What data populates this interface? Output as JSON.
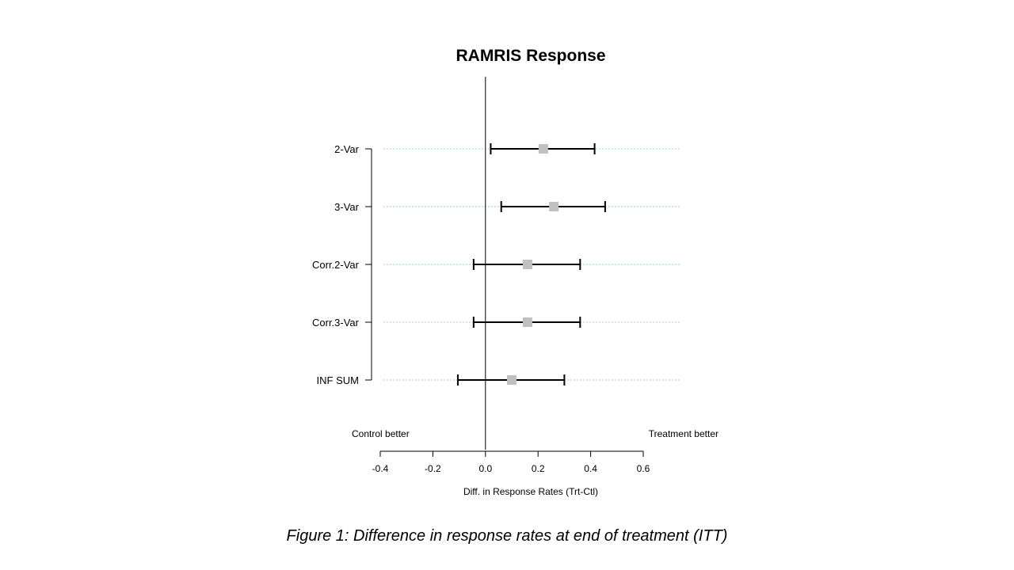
{
  "chart_data": {
    "type": "forest",
    "title": "RAMRIS Response",
    "xlabel": "Diff. in Response Rates (Trt-Ctl)",
    "xlim": [
      -0.4,
      0.6
    ],
    "xticks": [
      -0.4,
      -0.2,
      0.0,
      0.2,
      0.4,
      0.6
    ],
    "xtick_labels": [
      "-0.4",
      "-0.2",
      "0.0",
      "0.2",
      "0.4",
      "0.6"
    ],
    "reference_line": 0.0,
    "left_annotation": "Control better",
    "right_annotation": "Treatment better",
    "rows": [
      {
        "label": "2-Var",
        "estimate": 0.22,
        "lower": 0.02,
        "upper": 0.415
      },
      {
        "label": "3-Var",
        "estimate": 0.26,
        "lower": 0.06,
        "upper": 0.455
      },
      {
        "label": "Corr.2-Var",
        "estimate": 0.16,
        "lower": -0.045,
        "upper": 0.36
      },
      {
        "label": "Corr.3-Var",
        "estimate": 0.16,
        "lower": -0.045,
        "upper": 0.36
      },
      {
        "label": "INF SUM",
        "estimate": 0.1,
        "lower": -0.105,
        "upper": 0.3
      }
    ],
    "colors": {
      "marker": "#c0c0c0",
      "guide": "#9ecfd6",
      "line": "#000000"
    }
  },
  "caption": "Figure 1: Difference in response rates at end of treatment (ITT)"
}
